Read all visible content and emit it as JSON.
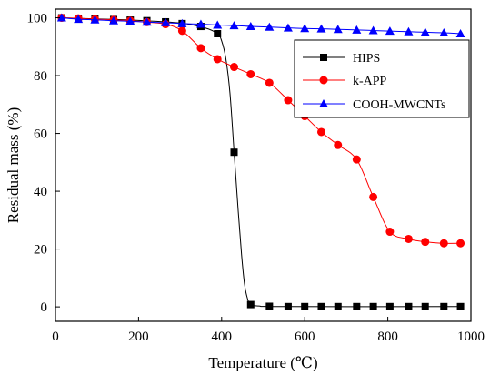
{
  "chart_data": {
    "type": "line",
    "title": "",
    "xlabel": "Temperature (℃)",
    "ylabel": "Residual mass (%)",
    "xlim": [
      0,
      1000
    ],
    "ylim": [
      -5,
      103
    ],
    "xticks": [
      0,
      200,
      400,
      600,
      800,
      1000
    ],
    "yticks": [
      0,
      20,
      40,
      60,
      80,
      100
    ],
    "grid": false,
    "legend_position": "top-right",
    "series": [
      {
        "name": "HIPS",
        "color": "#000000",
        "marker": "square",
        "markers": [
          [
            15,
            100
          ],
          [
            55,
            99.8
          ],
          [
            95,
            99.6
          ],
          [
            140,
            99.4
          ],
          [
            180,
            99.2
          ],
          [
            220,
            99.0
          ],
          [
            265,
            98.6
          ],
          [
            305,
            98.0
          ],
          [
            350,
            97.0
          ],
          [
            390,
            94.5
          ],
          [
            430,
            53.5
          ],
          [
            470,
            0.8
          ],
          [
            515,
            0.2
          ],
          [
            560,
            0.1
          ],
          [
            600,
            0.1
          ],
          [
            640,
            0.1
          ],
          [
            680,
            0.1
          ],
          [
            725,
            0.1
          ],
          [
            765,
            0.1
          ],
          [
            805,
            0.1
          ],
          [
            850,
            0.1
          ],
          [
            890,
            0.1
          ],
          [
            935,
            0.1
          ],
          [
            975,
            0.1
          ]
        ],
        "curve": [
          [
            10,
            100
          ],
          [
            100,
            99.6
          ],
          [
            200,
            99.1
          ],
          [
            300,
            98.2
          ],
          [
            360,
            96.5
          ],
          [
            390,
            94.5
          ],
          [
            400,
            92
          ],
          [
            410,
            86
          ],
          [
            420,
            74
          ],
          [
            430,
            53.5
          ],
          [
            440,
            33
          ],
          [
            448,
            18
          ],
          [
            455,
            8
          ],
          [
            462,
            3
          ],
          [
            470,
            0.8
          ],
          [
            490,
            0.3
          ],
          [
            550,
            0.1
          ],
          [
            975,
            0.1
          ]
        ]
      },
      {
        "name": "k-APP",
        "color": "#ff0000",
        "marker": "circle",
        "markers": [
          [
            15,
            100
          ],
          [
            55,
            99.8
          ],
          [
            95,
            99.5
          ],
          [
            140,
            99.3
          ],
          [
            180,
            99.0
          ],
          [
            220,
            98.5
          ],
          [
            265,
            97.8
          ],
          [
            305,
            95.5
          ],
          [
            350,
            89.5
          ],
          [
            390,
            85.7
          ],
          [
            430,
            83.0
          ],
          [
            470,
            80.5
          ],
          [
            515,
            77.5
          ],
          [
            560,
            71.5
          ],
          [
            600,
            66.0
          ],
          [
            640,
            60.5
          ],
          [
            680,
            56.0
          ],
          [
            725,
            51.0
          ],
          [
            765,
            38.0
          ],
          [
            805,
            26.0
          ],
          [
            850,
            23.5
          ],
          [
            890,
            22.5
          ],
          [
            935,
            22.0
          ],
          [
            975,
            22.0
          ]
        ]
      },
      {
        "name": "COOH-MWCNTs",
        "color": "#0000ff",
        "marker": "triangle",
        "markers": [
          [
            15,
            100
          ],
          [
            55,
            99.5
          ],
          [
            95,
            99.3
          ],
          [
            140,
            99.0
          ],
          [
            180,
            98.8
          ],
          [
            220,
            98.5
          ],
          [
            265,
            98.3
          ],
          [
            305,
            98.0
          ],
          [
            350,
            97.8
          ],
          [
            390,
            97.5
          ],
          [
            430,
            97.3
          ],
          [
            470,
            97.0
          ],
          [
            515,
            96.8
          ],
          [
            560,
            96.5
          ],
          [
            600,
            96.3
          ],
          [
            640,
            96.2
          ],
          [
            680,
            96.0
          ],
          [
            725,
            95.8
          ],
          [
            765,
            95.6
          ],
          [
            805,
            95.4
          ],
          [
            850,
            95.2
          ],
          [
            890,
            95.0
          ],
          [
            935,
            94.8
          ],
          [
            975,
            94.5
          ]
        ]
      }
    ]
  }
}
